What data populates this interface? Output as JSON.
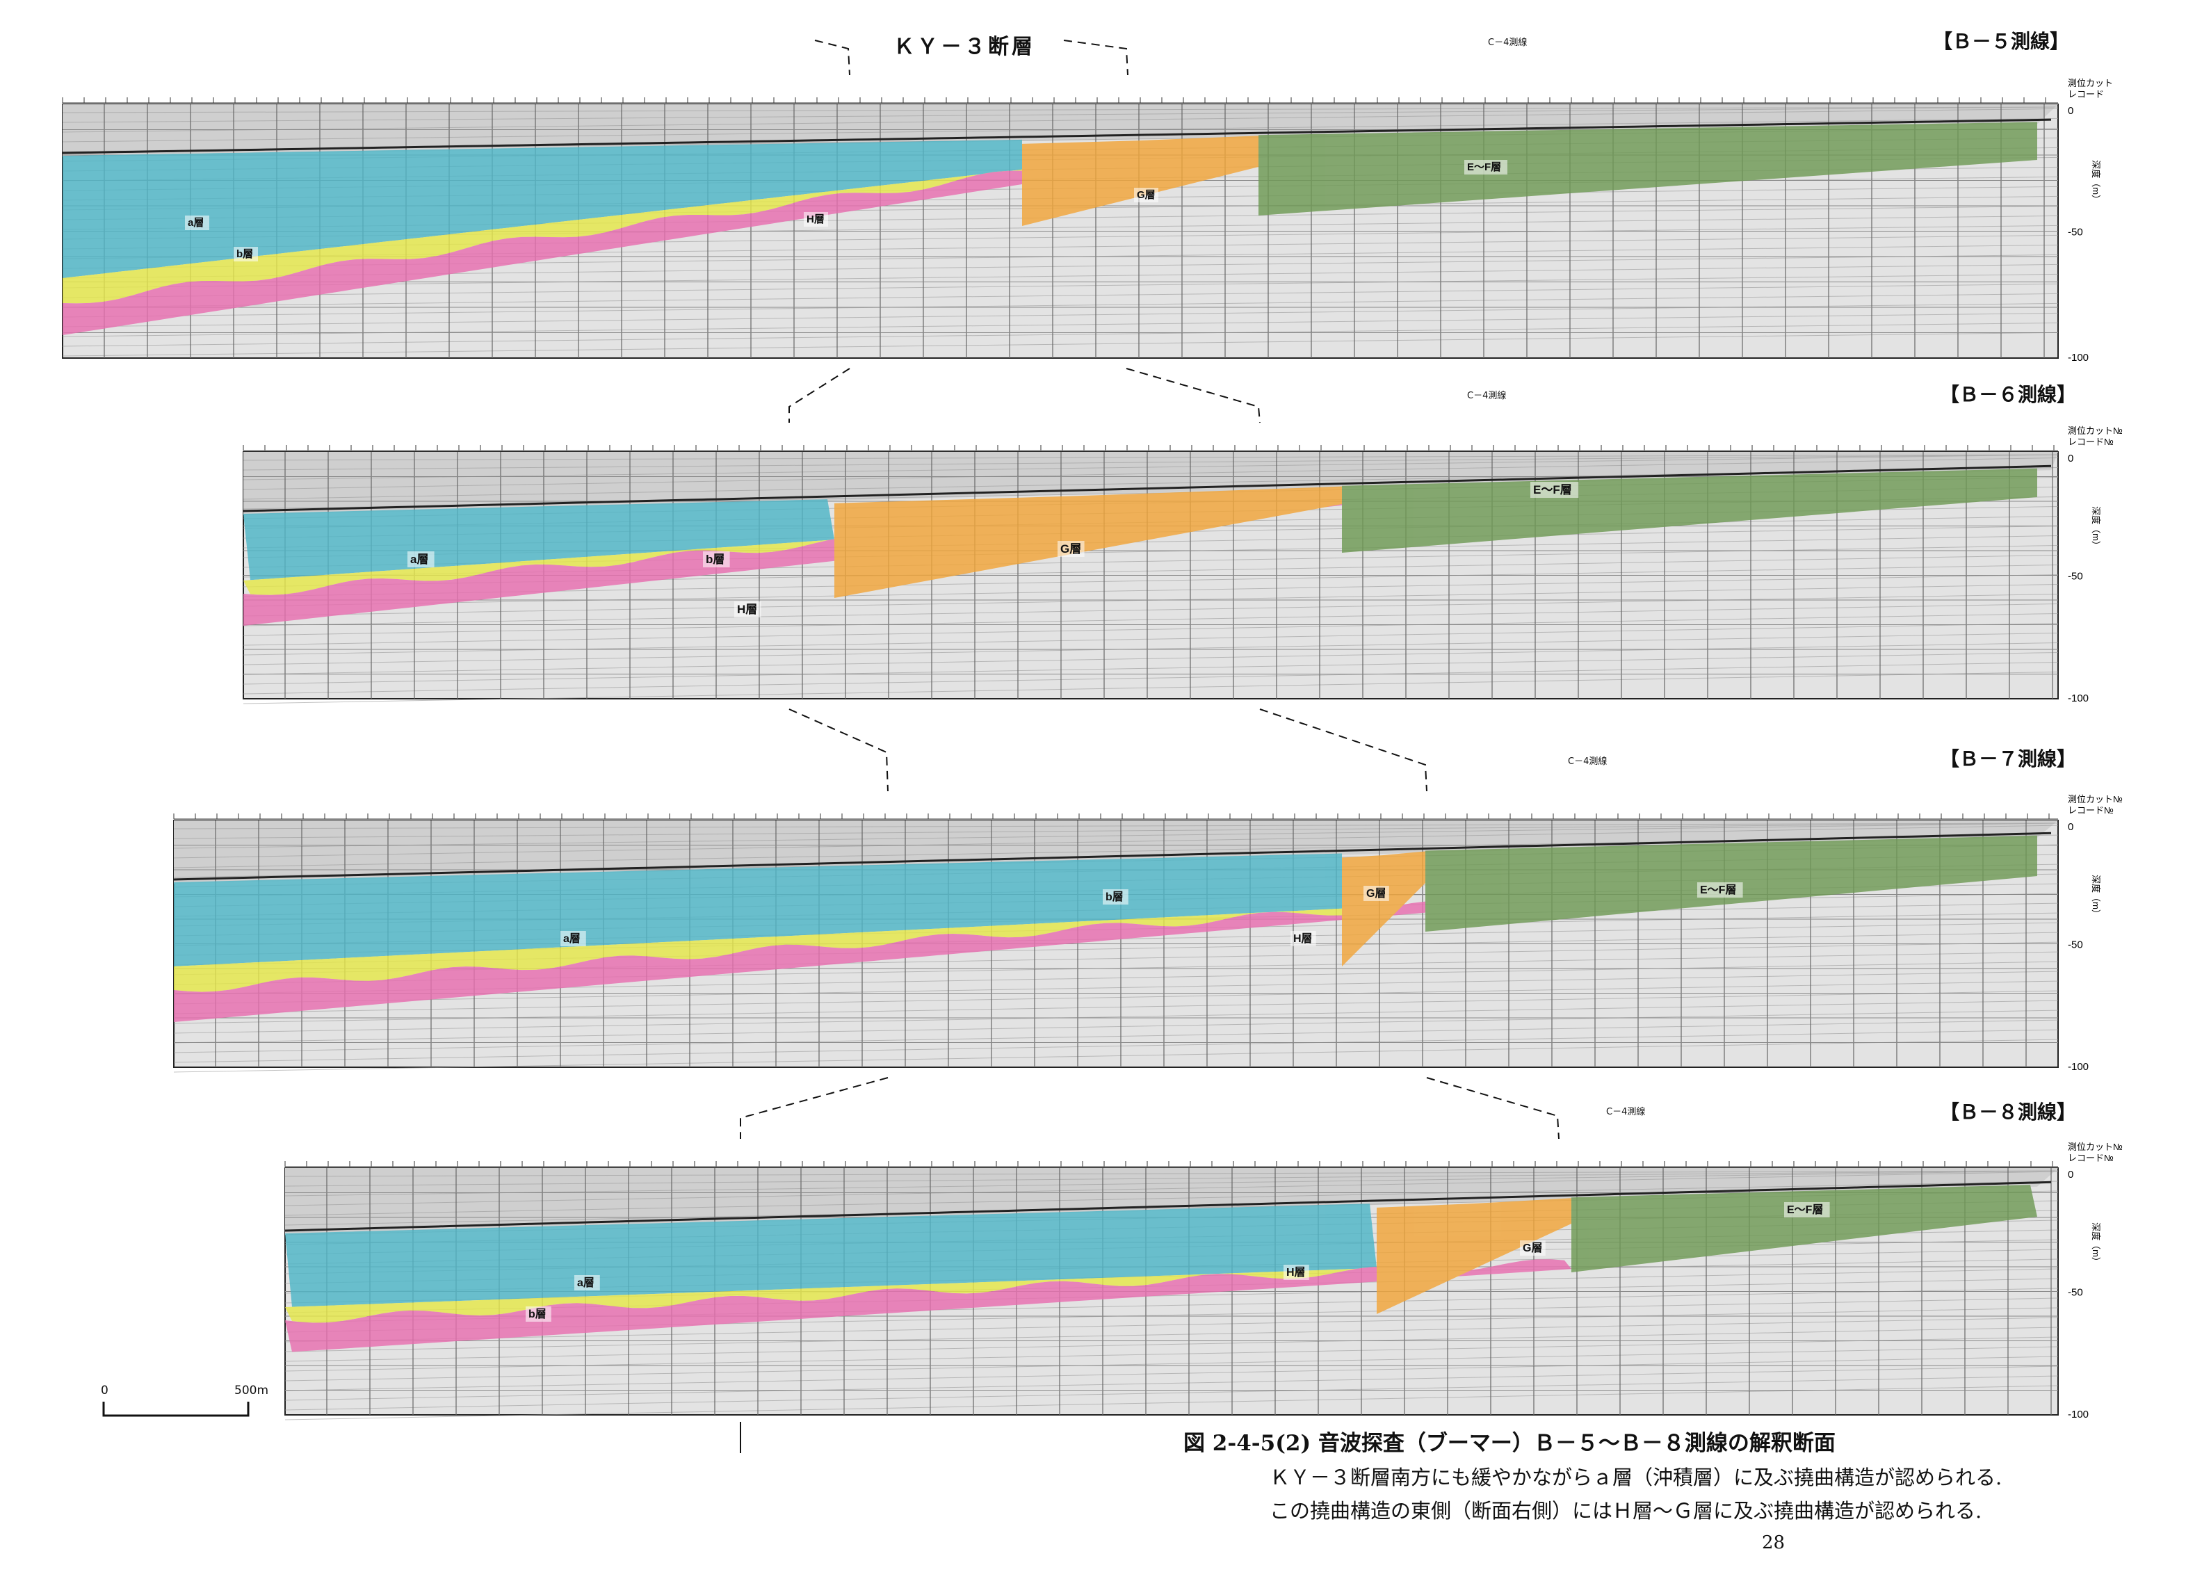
{
  "ky_fault_label": "ＫＹ－３断層",
  "c4_label": "C－4測線",
  "right_axis": {
    "cut_label": "測位カット",
    "record_label": "レコード",
    "cut_label_no": "測位カット№",
    "record_label_no": "レコード№",
    "depth_label": "深度（m）",
    "ticks": [
      "0",
      "-50",
      "-100"
    ]
  },
  "layers": {
    "a": "a層",
    "b": "b層",
    "h": "H層",
    "g": "G層",
    "ef": "E～F層"
  },
  "layer_colors": {
    "a": "#4fb6c7",
    "b": "#e6e84a",
    "h": "#e86fb0",
    "g": "#f2a63a",
    "ef": "#6f9a55"
  },
  "panels": [
    {
      "line_label": "【Ｂ－５測線】"
    },
    {
      "line_label": "【Ｂ－６測線】"
    },
    {
      "line_label": "【Ｂ－７測線】"
    },
    {
      "line_label": "【Ｂ－８測線】"
    }
  ],
  "scale_bar": {
    "start": "0",
    "end": "500m"
  },
  "caption": {
    "title": "図 2-4-5(2)  音波探査（ブーマー）Ｂ－５～Ｂ－８測線の解釈断面",
    "line1": "ＫＹ－３断層南方にも緩やかながらａ層（沖積層）に及ぶ撓曲構造が認められる.",
    "line2": "この撓曲構造の東側（断面右側）にはＨ層～Ｇ層に及ぶ撓曲構造が認められる."
  },
  "page_number": "28"
}
